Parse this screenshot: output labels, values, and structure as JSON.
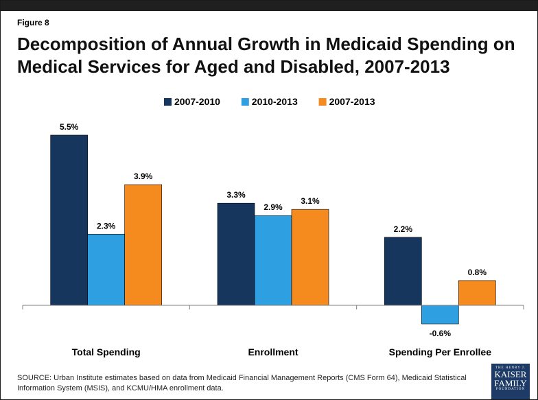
{
  "figure_label": "Figure 8",
  "title": "Decomposition of Annual Growth in Medicaid Spending on Medical Services for Aged and Disabled, 2007-2013",
  "source": "SOURCE: Urban Institute estimates based on data from Medicaid Financial Management Reports (CMS Form 64), Medicaid Statistical Information System (MSIS), and KCMU/HMA enrollment data.",
  "logo": {
    "line1": "THE HENRY J.",
    "line2": "KAISER",
    "line3": "FAMILY",
    "line4": "FOUNDATION"
  },
  "colors": {
    "s1": "#17365d",
    "s2": "#2e9fe0",
    "s3": "#f58a1f",
    "axis": "#7f7f7f"
  },
  "chart_data": {
    "type": "bar",
    "categories": [
      "Total Spending",
      "Enrollment",
      "Spending Per Enrollee"
    ],
    "series": [
      {
        "name": "2007-2010",
        "values": [
          5.5,
          3.3,
          2.2
        ],
        "labels": [
          "5.5%",
          "3.3%",
          "2.2%"
        ]
      },
      {
        "name": "2010-2013",
        "values": [
          2.3,
          2.9,
          -0.6
        ],
        "labels": [
          "2.3%",
          "2.9%",
          "-0.6%"
        ]
      },
      {
        "name": "2007-2013",
        "values": [
          3.9,
          3.1,
          0.8
        ],
        "labels": [
          "3.9%",
          "3.1%",
          "0.8%"
        ]
      }
    ],
    "legend_position": "top",
    "grid": false,
    "ylim": [
      -0.6,
      5.5
    ]
  }
}
